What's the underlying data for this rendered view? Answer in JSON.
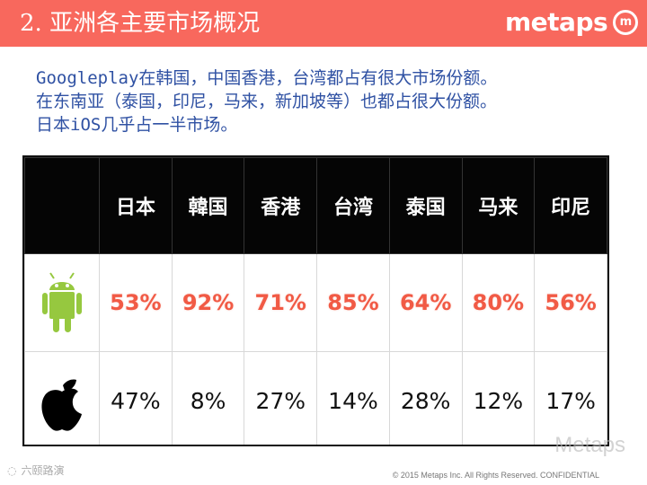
{
  "slide": {
    "title": "2. 亚洲各主要市场概况",
    "logo": "metaps",
    "logo_mark": "m",
    "intro_lines": [
      "Googleplay在韩国，中国香港，台湾都占有很大市场份额。",
      "在东南亚（泰国，印尼，马来，新加坡等）也都占很大份额。",
      "日本iOS几乎占一半市场。"
    ],
    "watermark": "Metaps",
    "wechat_label": "六颐路演",
    "copyright": "© 2015 Metaps Inc. All Rights Reserved. CONFIDENTIAL"
  },
  "chart_data": {
    "type": "table",
    "columns": [
      "日本",
      "韓国",
      "香港",
      "台湾",
      "泰国",
      "马来",
      "印尼"
    ],
    "rows": [
      {
        "platform_icon": "android-icon",
        "values": [
          "53%",
          "92%",
          "71%",
          "85%",
          "64%",
          "80%",
          "56%"
        ],
        "color": "#f15a45"
      },
      {
        "platform_icon": "apple-icon",
        "values": [
          "47%",
          "8%",
          "27%",
          "14%",
          "28%",
          "12%",
          "17%"
        ],
        "color": "#111111"
      }
    ]
  },
  "colors": {
    "header_red": "#f8685d",
    "text_blue": "#2f51a3",
    "android_green": "#96c83f"
  }
}
